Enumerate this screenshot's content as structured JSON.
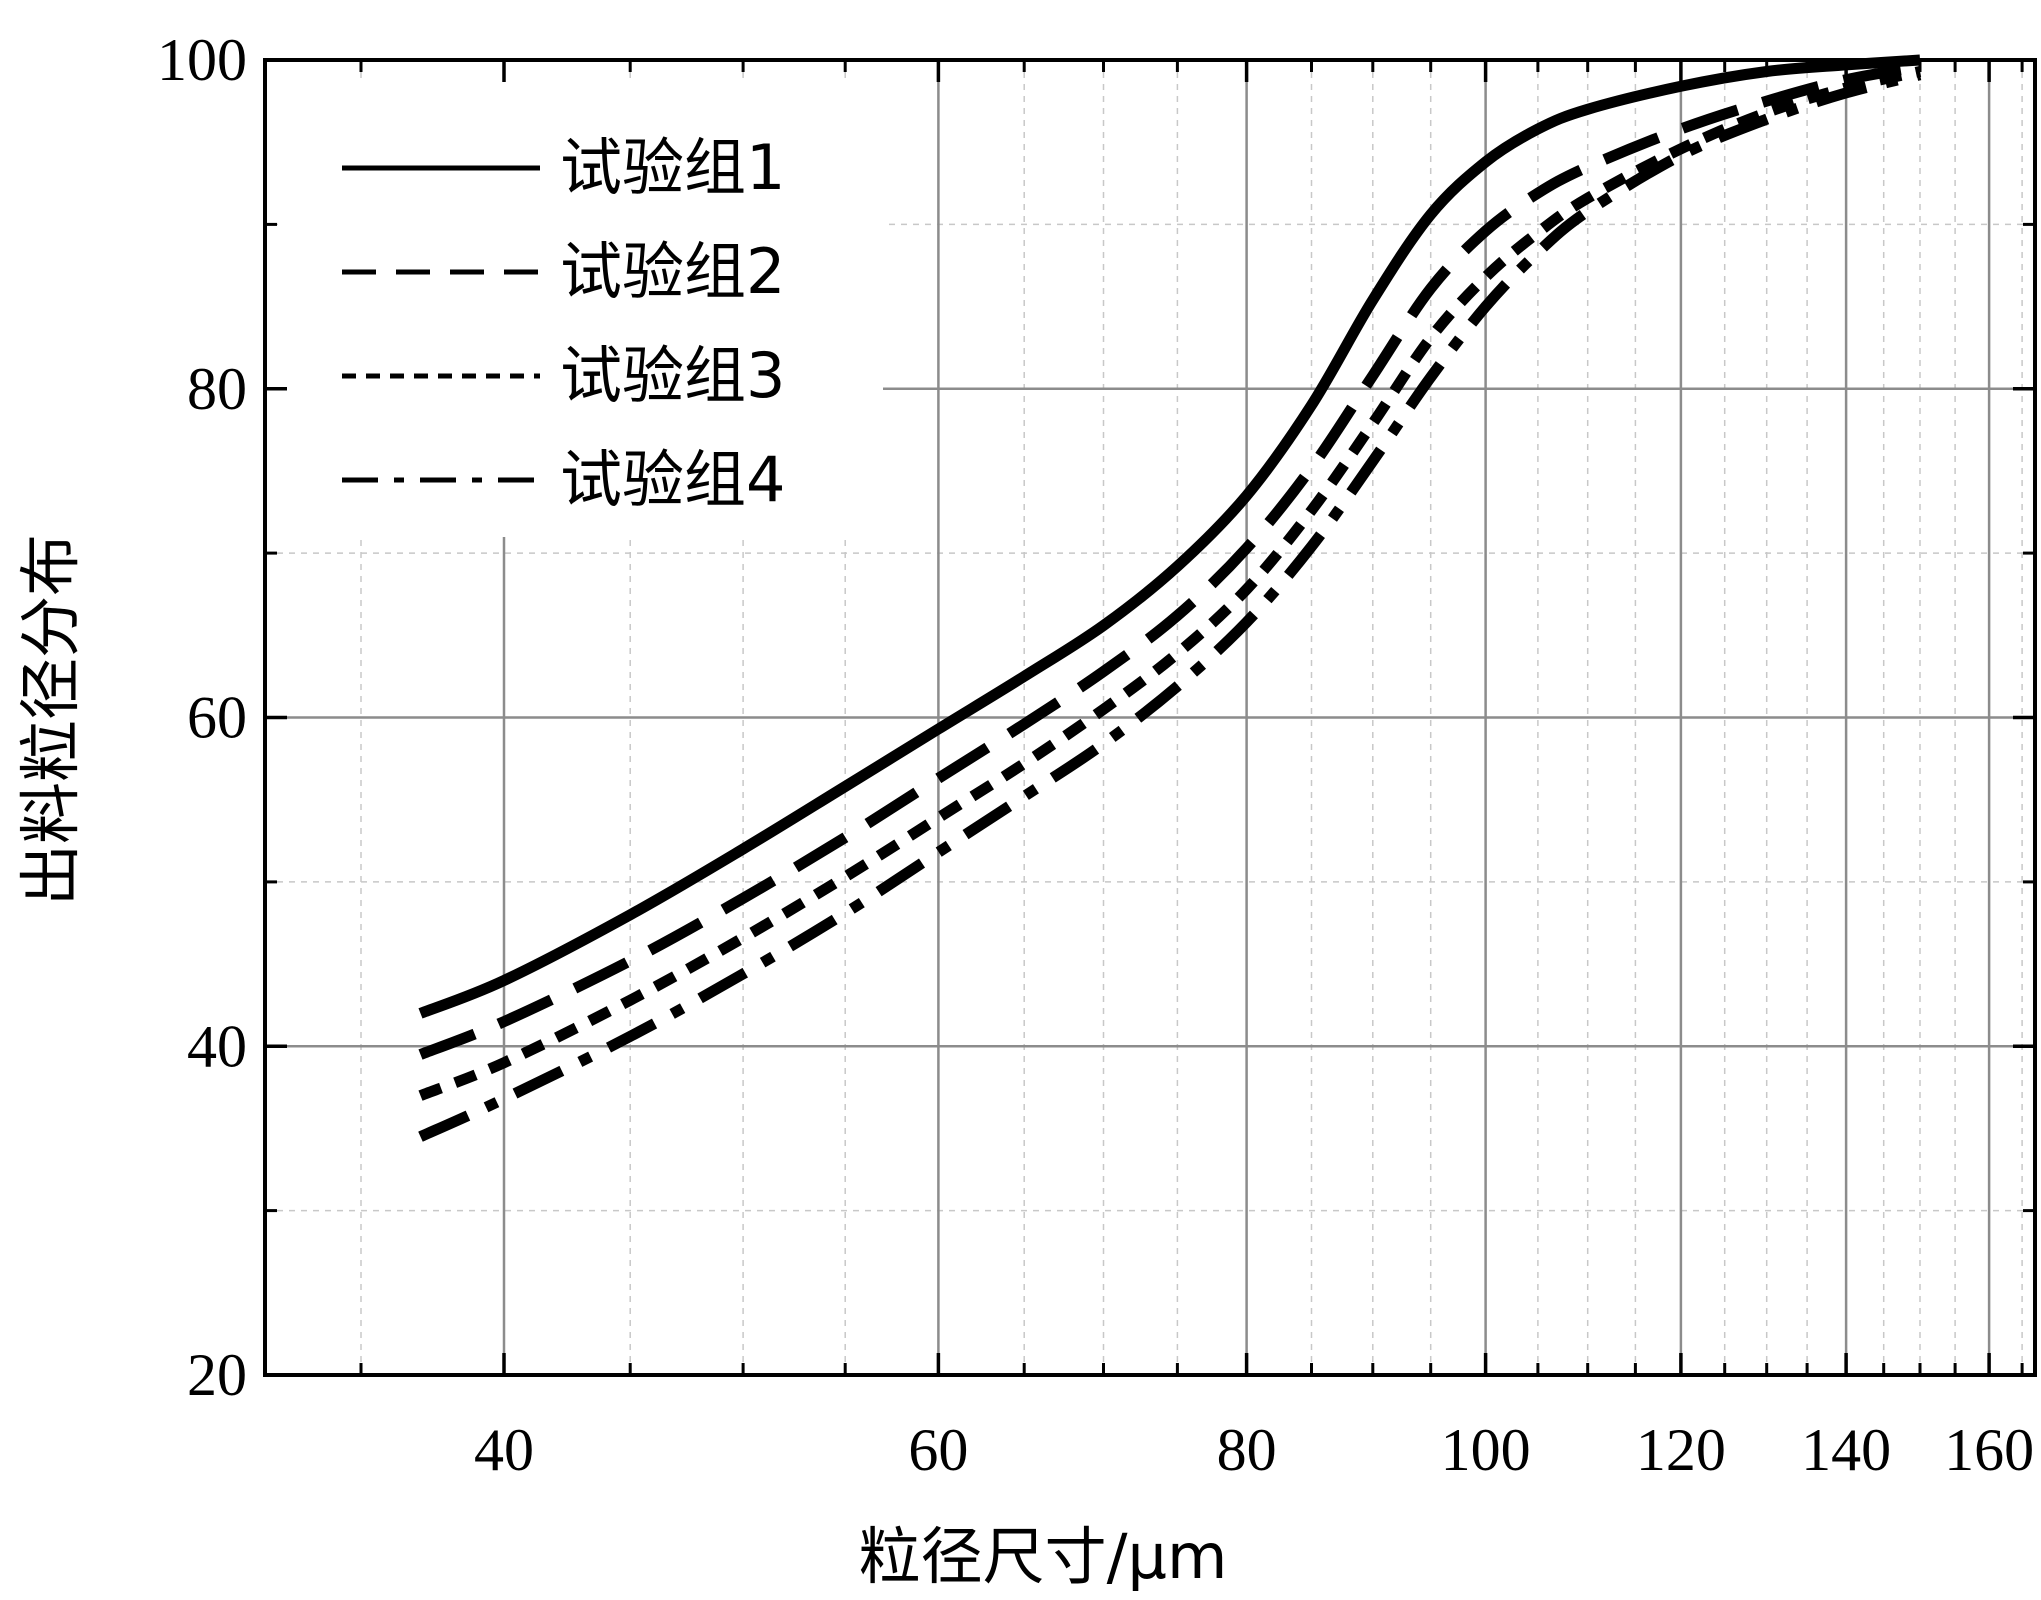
{
  "chart_data": {
    "type": "line",
    "xlabel": "粒径尺寸/μm",
    "ylabel": "出料粒径分布",
    "x_scale": "log",
    "xlim": [
      32,
      167
    ],
    "ylim": [
      20,
      100
    ],
    "x_ticks": [
      40,
      60,
      80,
      100,
      120,
      140,
      160
    ],
    "y_ticks": [
      20,
      40,
      60,
      80,
      100
    ],
    "x_minor_ticks": [
      35,
      45,
      50,
      55,
      65,
      70,
      75,
      85,
      90,
      95,
      105,
      110,
      115,
      125,
      130,
      135,
      145,
      150,
      155,
      165
    ],
    "y_minor_ticks": [
      30,
      50,
      70,
      90
    ],
    "grid": true,
    "legend_position": "top-left",
    "series": [
      {
        "name": "试验组1",
        "dash": "solid",
        "x": [
          37,
          40,
          45,
          50,
          55,
          60,
          65,
          70,
          75,
          80,
          85,
          90,
          95,
          100,
          105,
          110,
          120,
          130,
          140,
          150
        ],
        "y": [
          42,
          44,
          48,
          52,
          55.8,
          59.3,
          62.5,
          65.6,
          69.2,
          73.5,
          79,
          85.4,
          90.6,
          93.8,
          95.8,
          97,
          98.4,
          99.3,
          99.7,
          100
        ]
      },
      {
        "name": "试验组2",
        "dash": "long-dash",
        "x": [
          37,
          40,
          45,
          50,
          55,
          60,
          65,
          70,
          75,
          80,
          85,
          90,
          95,
          100,
          105,
          110,
          120,
          130,
          140,
          150
        ],
        "y": [
          39.5,
          41.5,
          45.2,
          49,
          52.7,
          56.3,
          59.6,
          62.8,
          66.2,
          70.3,
          75.2,
          80.8,
          86.1,
          89.6,
          91.9,
          93.5,
          95.8,
          97.5,
          98.8,
          99.6
        ]
      },
      {
        "name": "试验组3",
        "dash": "short-dash",
        "x": [
          37,
          40,
          45,
          50,
          55,
          60,
          65,
          70,
          75,
          80,
          85,
          90,
          95,
          100,
          105,
          110,
          120,
          130,
          140,
          150
        ],
        "y": [
          37,
          39,
          42.8,
          46.6,
          50.3,
          53.9,
          57.2,
          60.5,
          63.9,
          67.8,
          72.6,
          77.9,
          83.1,
          86.8,
          89.5,
          91.6,
          94.6,
          96.8,
          98.3,
          99.3
        ]
      },
      {
        "name": "试验组4",
        "dash": "dash-dot",
        "x": [
          37,
          40,
          45,
          50,
          55,
          60,
          65,
          70,
          75,
          80,
          85,
          90,
          95,
          100,
          105,
          110,
          120,
          130,
          140,
          150
        ],
        "y": [
          34.5,
          36.8,
          40.6,
          44.4,
          48.1,
          51.8,
          55.2,
          58.4,
          61.9,
          65.8,
          70.4,
          75.6,
          80.7,
          85,
          88.3,
          90.8,
          94.2,
          96.4,
          98,
          99.1
        ]
      }
    ]
  }
}
